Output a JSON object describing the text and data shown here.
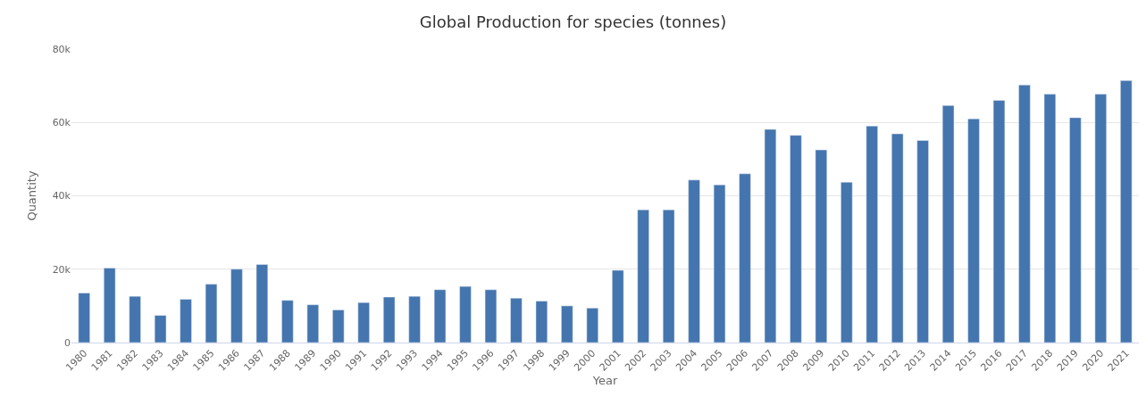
{
  "chart_data": {
    "type": "bar",
    "title": "Global Production for species (tonnes)",
    "xlabel": "Year",
    "ylabel": "Quantity",
    "categories": [
      "1980",
      "1981",
      "1982",
      "1983",
      "1984",
      "1985",
      "1986",
      "1987",
      "1988",
      "1989",
      "1990",
      "1991",
      "1992",
      "1993",
      "1994",
      "1995",
      "1996",
      "1997",
      "1998",
      "1999",
      "2000",
      "2001",
      "2002",
      "2003",
      "2004",
      "2005",
      "2006",
      "2007",
      "2008",
      "2009",
      "2010",
      "2011",
      "2012",
      "2013",
      "2014",
      "2015",
      "2016",
      "2017",
      "2018",
      "2019",
      "2020",
      "2021"
    ],
    "values": [
      13500,
      20300,
      12600,
      7400,
      11800,
      15900,
      20000,
      21300,
      11500,
      10300,
      8900,
      10900,
      12400,
      12600,
      14400,
      15300,
      14400,
      12100,
      11300,
      10000,
      9400,
      19700,
      36200,
      36200,
      44300,
      43000,
      46000,
      58100,
      56500,
      52500,
      43700,
      59000,
      56900,
      55100,
      64600,
      61000,
      66000,
      70200,
      67700,
      61300,
      67700,
      71400
    ],
    "color": "#4575ae",
    "ylim": [
      0,
      80000
    ],
    "yticks": [
      {
        "value": 0,
        "label": "0"
      },
      {
        "value": 20000,
        "label": "20k"
      },
      {
        "value": 40000,
        "label": "40k"
      },
      {
        "value": 60000,
        "label": "60k"
      },
      {
        "value": 80000,
        "label": "80k"
      }
    ],
    "grid": "y"
  }
}
